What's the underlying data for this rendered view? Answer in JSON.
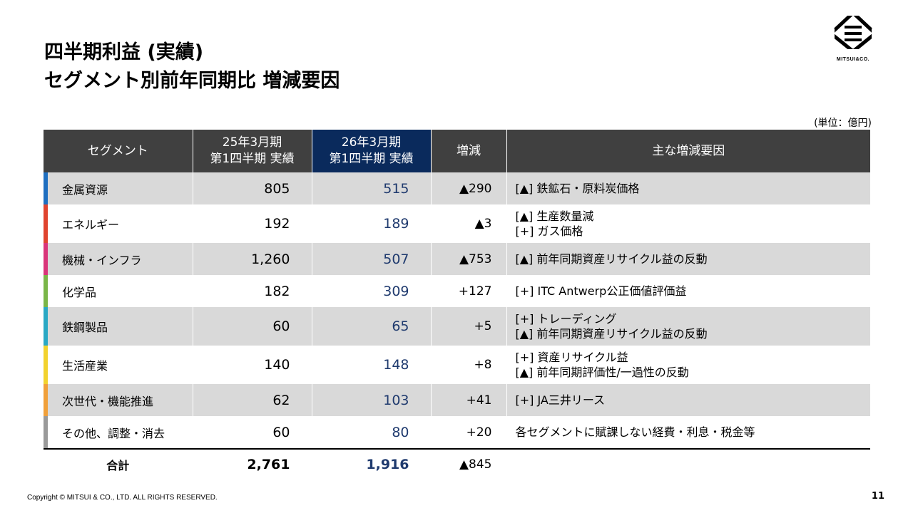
{
  "title": {
    "line1": "四半期利益 (実績)",
    "line2": "セグメント別前年同期比 増減要因"
  },
  "logo": {
    "text": "MITSUI&CO.",
    "icon": "mitsui-logo"
  },
  "unit": "(単位：億円)",
  "table": {
    "headers": {
      "segment": "セグメント",
      "prev_l1": "25年3月期",
      "prev_l2": "第1四半期 実績",
      "cur_l1": "26年3月期",
      "cur_l2": "第1四半期 実績",
      "diff": "増減",
      "reason": "主な増減要因"
    },
    "rows": [
      {
        "segment": "金属資源",
        "prev": "805",
        "cur": "515",
        "diff": "▲290",
        "r1": "[▲] 鉄鉱石・原料炭価格",
        "r2": "",
        "color": "#1f6fc0"
      },
      {
        "segment": "エネルギー",
        "prev": "192",
        "cur": "189",
        "diff": "▲3",
        "r1": "[▲] 生産数量減",
        "r2": "[+] ガス価格",
        "color": "#e0442f"
      },
      {
        "segment": "機械・インフラ",
        "prev": "1,260",
        "cur": "507",
        "diff": "▲753",
        "r1": "[▲] 前年同期資産リサイクル益の反動",
        "r2": "",
        "color": "#d9357a"
      },
      {
        "segment": "化学品",
        "prev": "182",
        "cur": "309",
        "diff": "+127",
        "r1": "[+] ITC Antwerp公正価値評価益",
        "r2": "",
        "color": "#7ab648"
      },
      {
        "segment": "鉄鋼製品",
        "prev": "60",
        "cur": "65",
        "diff": "+5",
        "r1": "[+] トレーディング",
        "r2": "[▲] 前年同期資産リサイクル益の反動",
        "color": "#2aa8c4"
      },
      {
        "segment": "生活産業",
        "prev": "140",
        "cur": "148",
        "diff": "+8",
        "r1": "[+] 資産リサイクル益",
        "r2": "[▲] 前年同期評価性/一過性の反動",
        "color": "#f2d22e"
      },
      {
        "segment": "次世代・機能推進",
        "prev": "62",
        "cur": "103",
        "diff": "+41",
        "r1": "[+] JA三井リース",
        "r2": "",
        "color": "#f0a03a"
      },
      {
        "segment": "その他、調整・消去",
        "prev": "60",
        "cur": "80",
        "diff": "+20",
        "r1": "各セグメントに賦課しない経費・利息・税金等",
        "r2": "",
        "color": "#9a9a9a"
      }
    ],
    "total": {
      "label": "合計",
      "prev": "2,761",
      "cur": "1,916",
      "diff": "▲845"
    }
  },
  "footer": {
    "copyright": "Copyright © MITSUI & CO., LTD. ALL RIGHTS RESERVED.",
    "page": "11"
  }
}
